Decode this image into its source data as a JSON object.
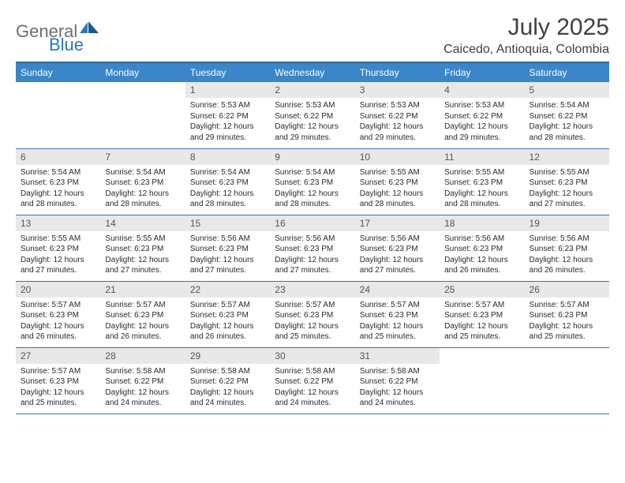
{
  "brand": {
    "part1": "General",
    "part2": "Blue"
  },
  "title": "July 2025",
  "location": "Caicedo, Antioquia, Colombia",
  "colors": {
    "header_bg": "#3a86c8",
    "header_border_top": "#2d6aa3",
    "row_border": "#3a75a8",
    "daynum_bg": "#e8e8e8",
    "brand_gray": "#6e6e6e",
    "brand_blue": "#2978bd"
  },
  "day_headers": [
    "Sunday",
    "Monday",
    "Tuesday",
    "Wednesday",
    "Thursday",
    "Friday",
    "Saturday"
  ],
  "weeks": [
    [
      null,
      null,
      {
        "n": "1",
        "sr": "5:53 AM",
        "ss": "6:22 PM",
        "dl": "12 hours and 29 minutes."
      },
      {
        "n": "2",
        "sr": "5:53 AM",
        "ss": "6:22 PM",
        "dl": "12 hours and 29 minutes."
      },
      {
        "n": "3",
        "sr": "5:53 AM",
        "ss": "6:22 PM",
        "dl": "12 hours and 29 minutes."
      },
      {
        "n": "4",
        "sr": "5:53 AM",
        "ss": "6:22 PM",
        "dl": "12 hours and 29 minutes."
      },
      {
        "n": "5",
        "sr": "5:54 AM",
        "ss": "6:22 PM",
        "dl": "12 hours and 28 minutes."
      }
    ],
    [
      {
        "n": "6",
        "sr": "5:54 AM",
        "ss": "6:23 PM",
        "dl": "12 hours and 28 minutes."
      },
      {
        "n": "7",
        "sr": "5:54 AM",
        "ss": "6:23 PM",
        "dl": "12 hours and 28 minutes."
      },
      {
        "n": "8",
        "sr": "5:54 AM",
        "ss": "6:23 PM",
        "dl": "12 hours and 28 minutes."
      },
      {
        "n": "9",
        "sr": "5:54 AM",
        "ss": "6:23 PM",
        "dl": "12 hours and 28 minutes."
      },
      {
        "n": "10",
        "sr": "5:55 AM",
        "ss": "6:23 PM",
        "dl": "12 hours and 28 minutes."
      },
      {
        "n": "11",
        "sr": "5:55 AM",
        "ss": "6:23 PM",
        "dl": "12 hours and 28 minutes."
      },
      {
        "n": "12",
        "sr": "5:55 AM",
        "ss": "6:23 PM",
        "dl": "12 hours and 27 minutes."
      }
    ],
    [
      {
        "n": "13",
        "sr": "5:55 AM",
        "ss": "6:23 PM",
        "dl": "12 hours and 27 minutes."
      },
      {
        "n": "14",
        "sr": "5:55 AM",
        "ss": "6:23 PM",
        "dl": "12 hours and 27 minutes."
      },
      {
        "n": "15",
        "sr": "5:56 AM",
        "ss": "6:23 PM",
        "dl": "12 hours and 27 minutes."
      },
      {
        "n": "16",
        "sr": "5:56 AM",
        "ss": "6:23 PM",
        "dl": "12 hours and 27 minutes."
      },
      {
        "n": "17",
        "sr": "5:56 AM",
        "ss": "6:23 PM",
        "dl": "12 hours and 27 minutes."
      },
      {
        "n": "18",
        "sr": "5:56 AM",
        "ss": "6:23 PM",
        "dl": "12 hours and 26 minutes."
      },
      {
        "n": "19",
        "sr": "5:56 AM",
        "ss": "6:23 PM",
        "dl": "12 hours and 26 minutes."
      }
    ],
    [
      {
        "n": "20",
        "sr": "5:57 AM",
        "ss": "6:23 PM",
        "dl": "12 hours and 26 minutes."
      },
      {
        "n": "21",
        "sr": "5:57 AM",
        "ss": "6:23 PM",
        "dl": "12 hours and 26 minutes."
      },
      {
        "n": "22",
        "sr": "5:57 AM",
        "ss": "6:23 PM",
        "dl": "12 hours and 26 minutes."
      },
      {
        "n": "23",
        "sr": "5:57 AM",
        "ss": "6:23 PM",
        "dl": "12 hours and 25 minutes."
      },
      {
        "n": "24",
        "sr": "5:57 AM",
        "ss": "6:23 PM",
        "dl": "12 hours and 25 minutes."
      },
      {
        "n": "25",
        "sr": "5:57 AM",
        "ss": "6:23 PM",
        "dl": "12 hours and 25 minutes."
      },
      {
        "n": "26",
        "sr": "5:57 AM",
        "ss": "6:23 PM",
        "dl": "12 hours and 25 minutes."
      }
    ],
    [
      {
        "n": "27",
        "sr": "5:57 AM",
        "ss": "6:23 PM",
        "dl": "12 hours and 25 minutes."
      },
      {
        "n": "28",
        "sr": "5:58 AM",
        "ss": "6:22 PM",
        "dl": "12 hours and 24 minutes."
      },
      {
        "n": "29",
        "sr": "5:58 AM",
        "ss": "6:22 PM",
        "dl": "12 hours and 24 minutes."
      },
      {
        "n": "30",
        "sr": "5:58 AM",
        "ss": "6:22 PM",
        "dl": "12 hours and 24 minutes."
      },
      {
        "n": "31",
        "sr": "5:58 AM",
        "ss": "6:22 PM",
        "dl": "12 hours and 24 minutes."
      },
      null,
      null
    ]
  ],
  "labels": {
    "sunrise": "Sunrise:",
    "sunset": "Sunset:",
    "daylight": "Daylight:"
  }
}
